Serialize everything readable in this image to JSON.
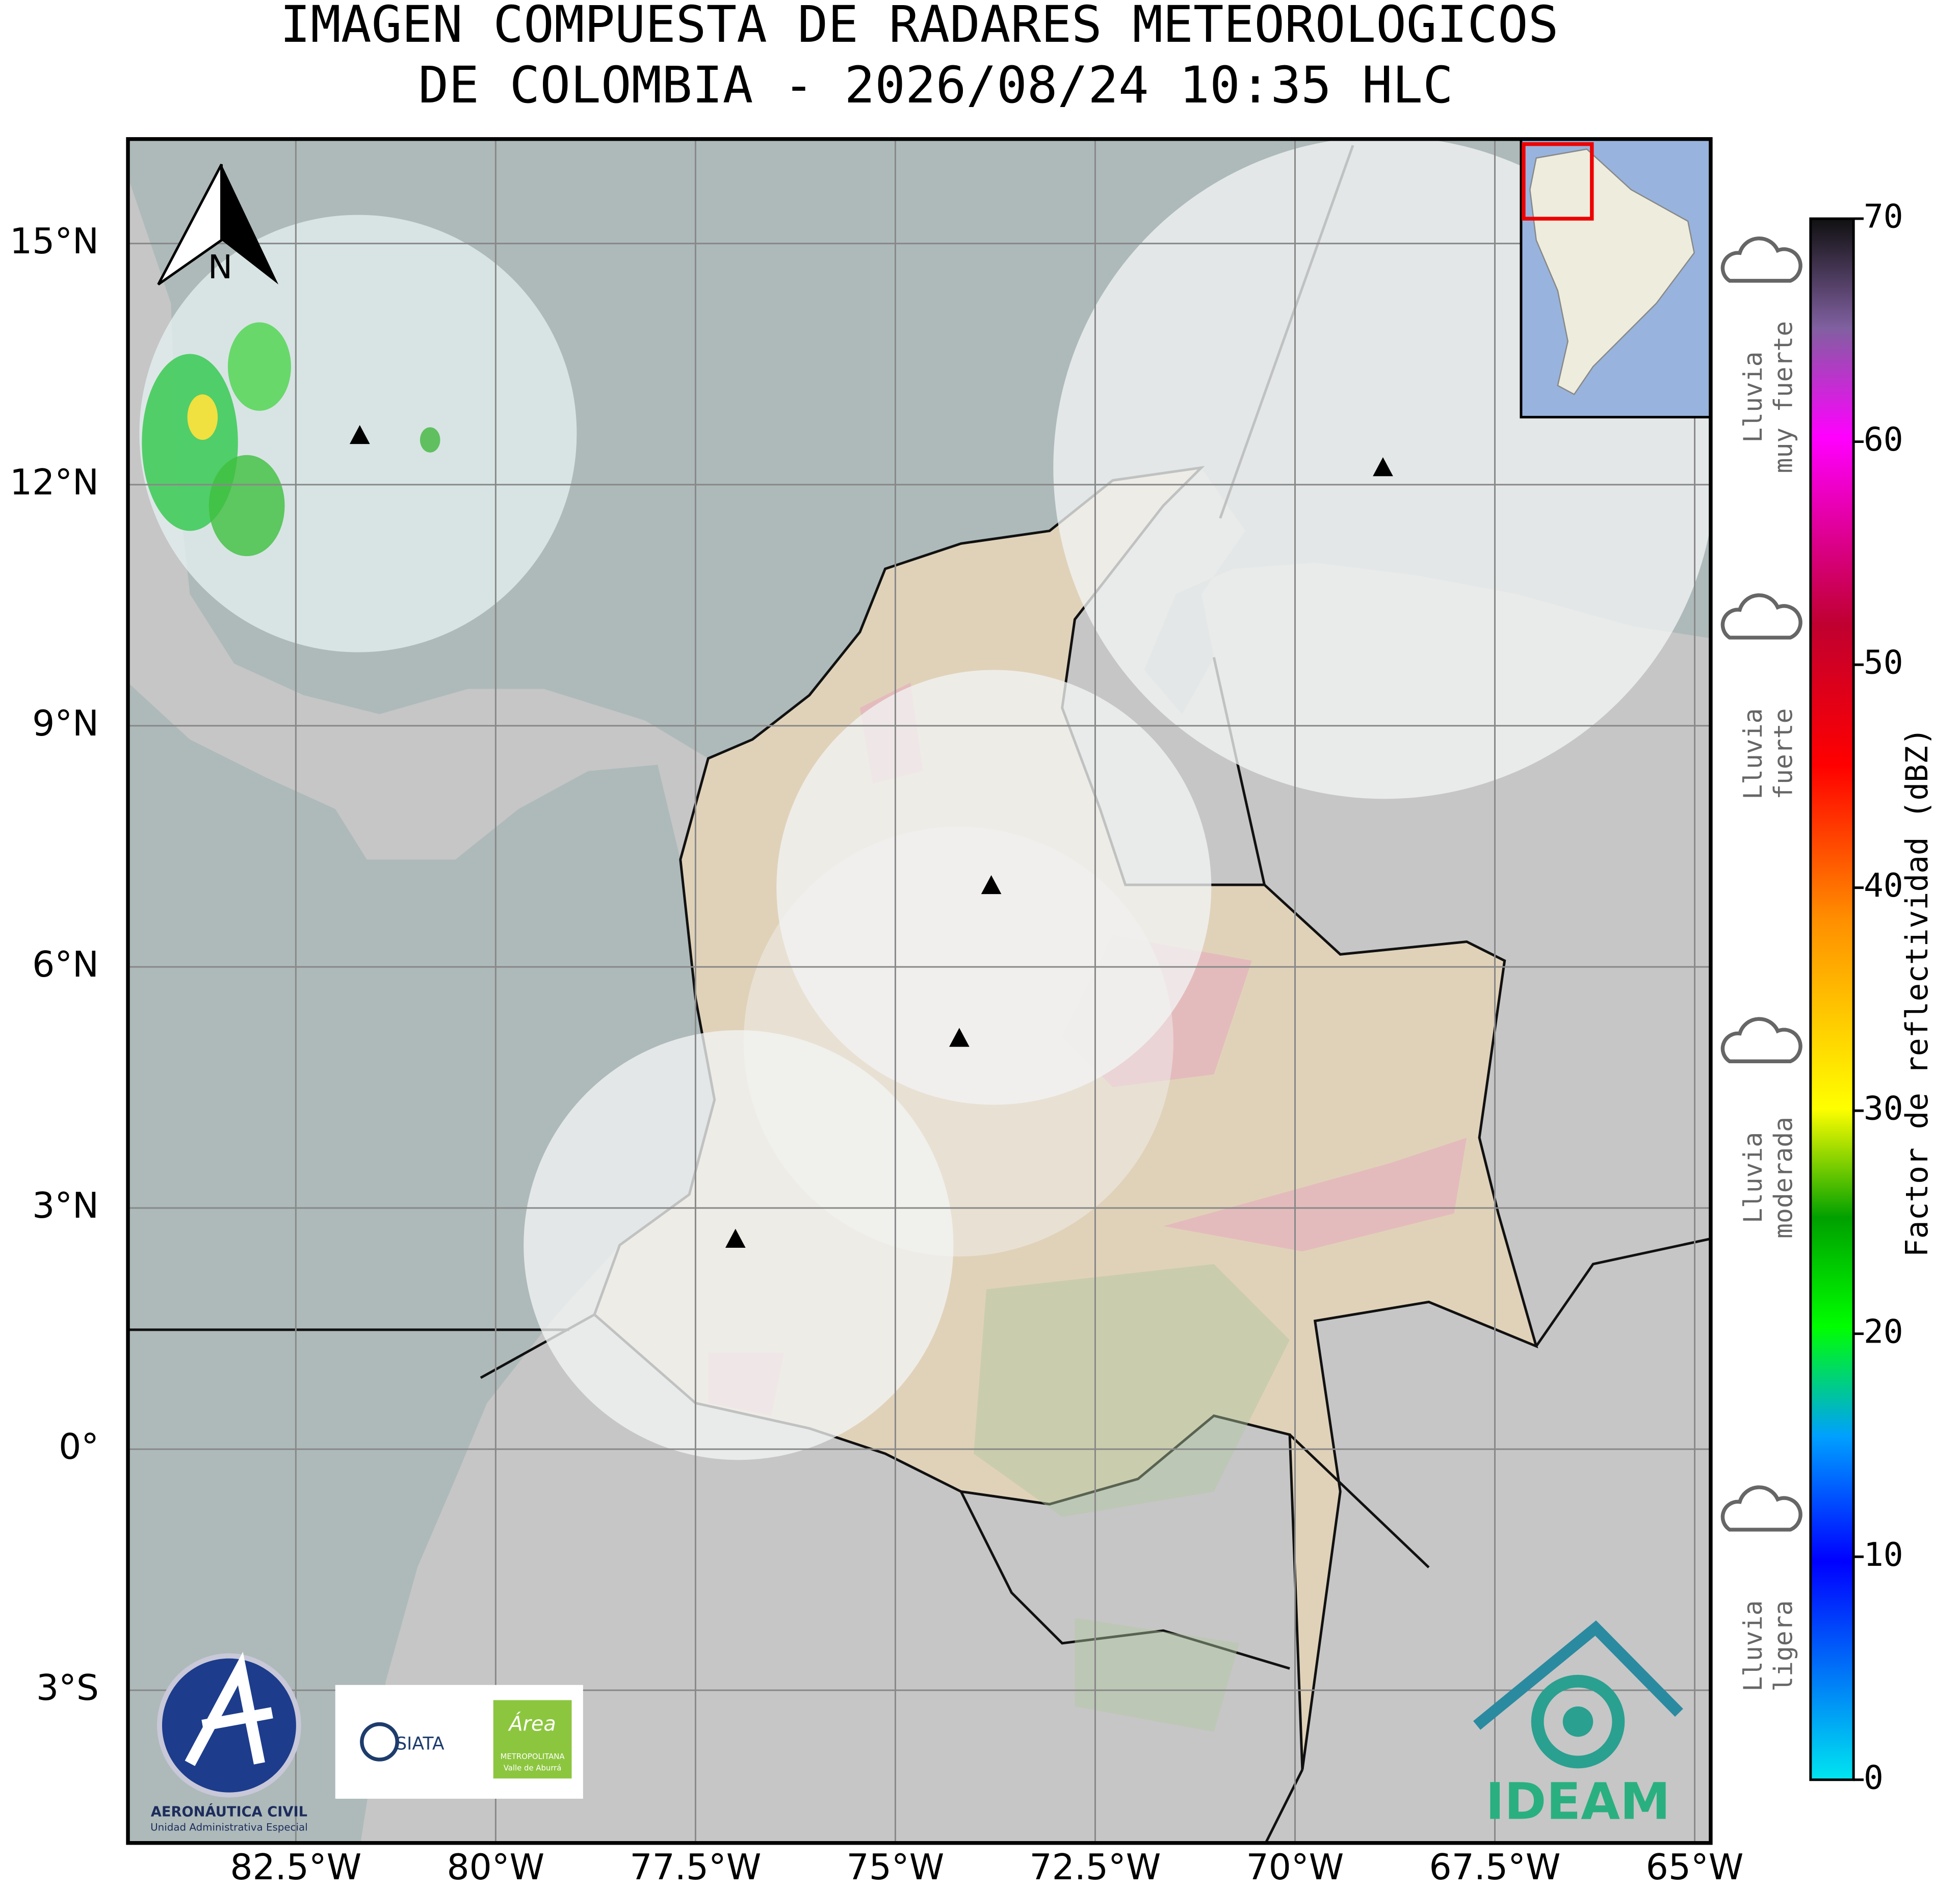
{
  "map": {
    "title": [
      "IMAGEN COMPUESTA DE RADARES METEOROLOGICOS",
      "DE COLOMBIA - 2026/08/24 10:35 HLC"
    ],
    "xlim": [
      -84.6,
      -64.8
    ],
    "ylim": [
      -4.9,
      16.3
    ],
    "grid": true,
    "xticks": [
      {
        "value": -82.5,
        "label": "82.5°W"
      },
      {
        "value": -80,
        "label": "80°W"
      },
      {
        "value": -77.5,
        "label": "77.5°W"
      },
      {
        "value": -75,
        "label": "75°W"
      },
      {
        "value": -72.5,
        "label": "72.5°W"
      },
      {
        "value": -70,
        "label": "70°W"
      },
      {
        "value": -67.5,
        "label": "67.5°W"
      },
      {
        "value": -65,
        "label": "65°W"
      }
    ],
    "yticks": [
      {
        "value": -3,
        "label": "3°S"
      },
      {
        "value": 0,
        "label": "0°"
      },
      {
        "value": 3,
        "label": "3°N"
      },
      {
        "value": 6,
        "label": "6°N"
      },
      {
        "value": 9,
        "label": "9°N"
      },
      {
        "value": 12,
        "label": "12°N"
      },
      {
        "value": 15,
        "label": "15°N"
      }
    ],
    "radars": [
      {
        "lon": -81.7,
        "lat": 12.6
      },
      {
        "lon": -68.9,
        "lat": 12.2
      },
      {
        "lon": -73.8,
        "lat": 7.0
      },
      {
        "lon": -74.2,
        "lat": 5.1
      },
      {
        "lon": -77.0,
        "lat": 2.6
      }
    ],
    "north": "N",
    "colorbar": {
      "label": "Factor de reflectividad (dBZ)",
      "lim": [
        0,
        70
      ],
      "ticks": [
        0,
        10,
        20,
        30,
        40,
        50,
        60,
        70
      ]
    },
    "rain_levels": [
      {
        "lines": [
          "Lluvia",
          "muy fuerte"
        ],
        "center": 62
      },
      {
        "lines": [
          "Lluvia",
          "fuerte"
        ],
        "center": 46
      },
      {
        "lines": [
          "Lluvia",
          "moderada"
        ],
        "center": 27
      },
      {
        "lines": [
          "Lluvia",
          "ligera"
        ],
        "center": 6
      }
    ],
    "logos": {
      "aero": [
        "AERONÁUTICA CIVIL",
        "Unidad Administrativa Especial"
      ],
      "siata": "SIATA",
      "area": [
        "Área",
        "METROPOLITANA",
        "Valle de Aburrá"
      ],
      "ideam": "IDEAM"
    }
  }
}
